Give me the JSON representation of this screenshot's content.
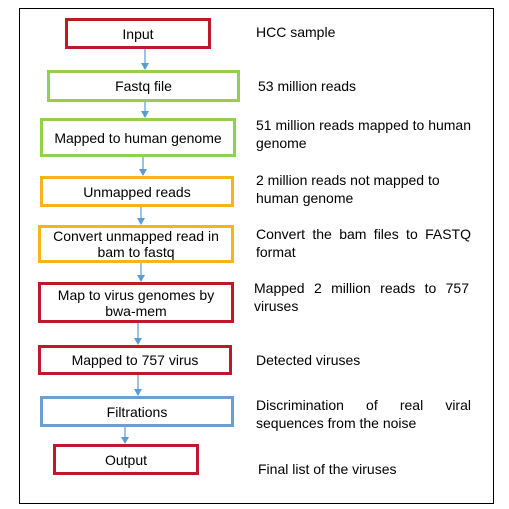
{
  "colors": {
    "red": "#c0182a",
    "green": "#92d050",
    "yellow": "#f4b41a",
    "blue": "#6a9fd0",
    "arrow": "#5b9bd5"
  },
  "steps": [
    {
      "label": "Input",
      "color": "red",
      "description": "HCC sample"
    },
    {
      "label": "Fastq file",
      "color": "green",
      "description": "53 million reads"
    },
    {
      "label": "Mapped to human genome",
      "color": "green",
      "description": "51 million reads mapped to human genome"
    },
    {
      "label": "Unmapped reads",
      "color": "yellow",
      "description": "2 million reads not mapped to human genome"
    },
    {
      "label": "Convert unmapped read in bam to fastq",
      "color": "yellow",
      "description": "Convert the bam files to FASTQ format"
    },
    {
      "label": "Map to virus genomes by bwa-mem",
      "color": "red",
      "description": "Mapped 2 million reads to 757 viruses"
    },
    {
      "label": "Mapped to 757 virus",
      "color": "red",
      "description": "Detected viruses"
    },
    {
      "label": "Filtrations",
      "color": "blue",
      "description": "Discrimination of real viral sequences from the noise"
    },
    {
      "label": "Output",
      "color": "red",
      "description": "Final list of the viruses"
    }
  ]
}
